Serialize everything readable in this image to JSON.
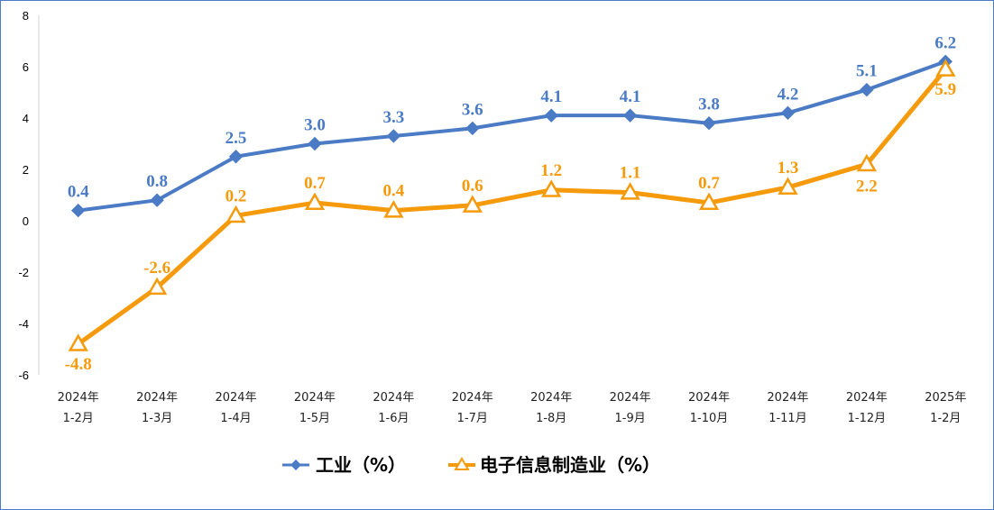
{
  "chart_data": {
    "type": "line",
    "categories": [
      [
        "2024年",
        "1-2月"
      ],
      [
        "2024年",
        "1-3月"
      ],
      [
        "2024年",
        "1-4月"
      ],
      [
        "2024年",
        "1-5月"
      ],
      [
        "2024年",
        "1-6月"
      ],
      [
        "2024年",
        "1-7月"
      ],
      [
        "2024年",
        "1-8月"
      ],
      [
        "2024年",
        "1-9月"
      ],
      [
        "2024年",
        "1-10月"
      ],
      [
        "2024年",
        "1-11月"
      ],
      [
        "2024年",
        "1-12月"
      ],
      [
        "2025年",
        "1-2月"
      ]
    ],
    "series": [
      {
        "name": "工业（%）",
        "color": "#4a7bc4",
        "marker": "diamond",
        "values": [
          0.4,
          0.8,
          2.5,
          3.0,
          3.3,
          3.6,
          4.1,
          4.1,
          3.8,
          4.2,
          5.1,
          6.2
        ],
        "labels": [
          "0.4",
          "0.8",
          "2.5",
          "3.0",
          "3.3",
          "3.6",
          "4.1",
          "4.1",
          "3.8",
          "4.2",
          "5.1",
          "6.2"
        ]
      },
      {
        "name": "电子信息制造业（%）",
        "color": "#f59a0b",
        "marker": "triangle",
        "values": [
          -4.8,
          -2.6,
          0.2,
          0.7,
          0.4,
          0.6,
          1.2,
          1.1,
          0.7,
          1.3,
          2.2,
          5.9
        ],
        "labels": [
          "-4.8",
          "-2.6",
          "0.2",
          "0.7",
          "0.4",
          "0.6",
          "1.2",
          "1.1",
          "0.7",
          "1.3",
          "2.2",
          "5.9"
        ]
      }
    ],
    "ylim": [
      -6,
      8
    ],
    "yticks": [
      -6,
      -4,
      -2,
      0,
      2,
      4,
      6,
      8
    ],
    "grid": false,
    "legend_position": "bottom"
  }
}
